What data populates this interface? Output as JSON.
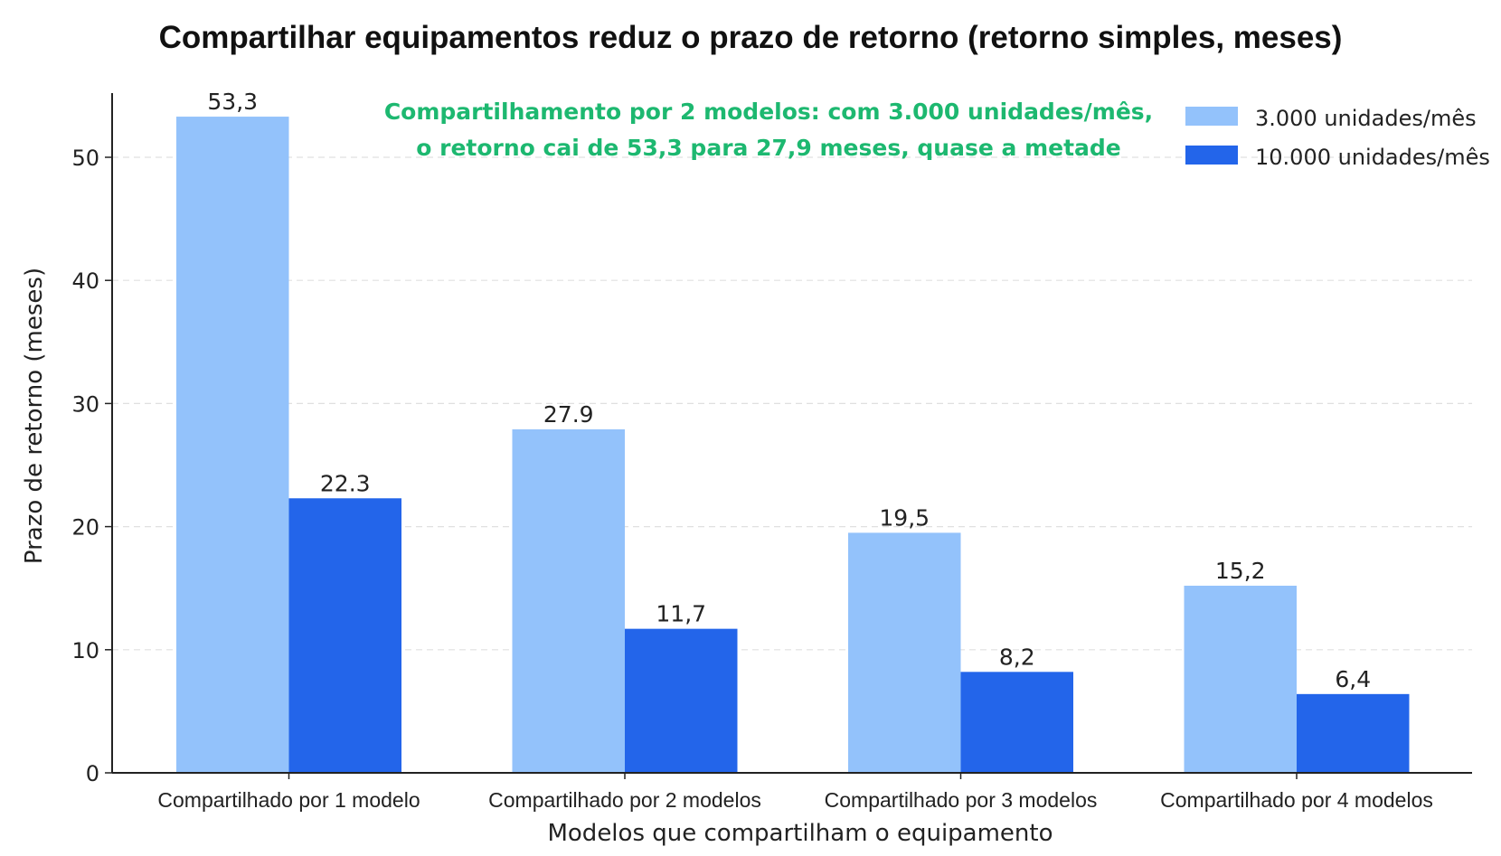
{
  "chart_data": {
    "type": "bar",
    "title": "Compartilhar equipamentos reduz o prazo de retorno (retorno simples, meses)",
    "xlabel": "Modelos que compartilham o equipamento",
    "ylabel": "Prazo de retorno (meses)",
    "ylim": [
      0,
      55
    ],
    "yticks": [
      "0",
      "10",
      "20",
      "30",
      "40",
      "50"
    ],
    "categories": [
      "Compartilhado por 1 modelo",
      "Compartilhado por 2 modelos",
      "Compartilhado por 3 modelos",
      "Compartilhado por 4 modelos"
    ],
    "series": [
      {
        "name": "3.000 unidades/mês",
        "color": "#93c2fb",
        "values": [
          53.3,
          27.9,
          19.5,
          15.2
        ],
        "labels": [
          "53,3",
          "27.9",
          "19,5",
          "15,2"
        ]
      },
      {
        "name": "10.000 unidades/mês",
        "color": "#2365ea",
        "values": [
          22.3,
          11.7,
          8.2,
          6.4
        ],
        "labels": [
          "22.3",
          "11,7",
          "8,2",
          "6,4"
        ]
      }
    ],
    "annotation": [
      "Compartilhamento por 2 modelos: com 3.000 unidades/mês,",
      "o retorno cai de 53,3 para 27,9 meses, quase a metade"
    ],
    "grid": "horizontal dashed",
    "legend_position": "top-right"
  }
}
